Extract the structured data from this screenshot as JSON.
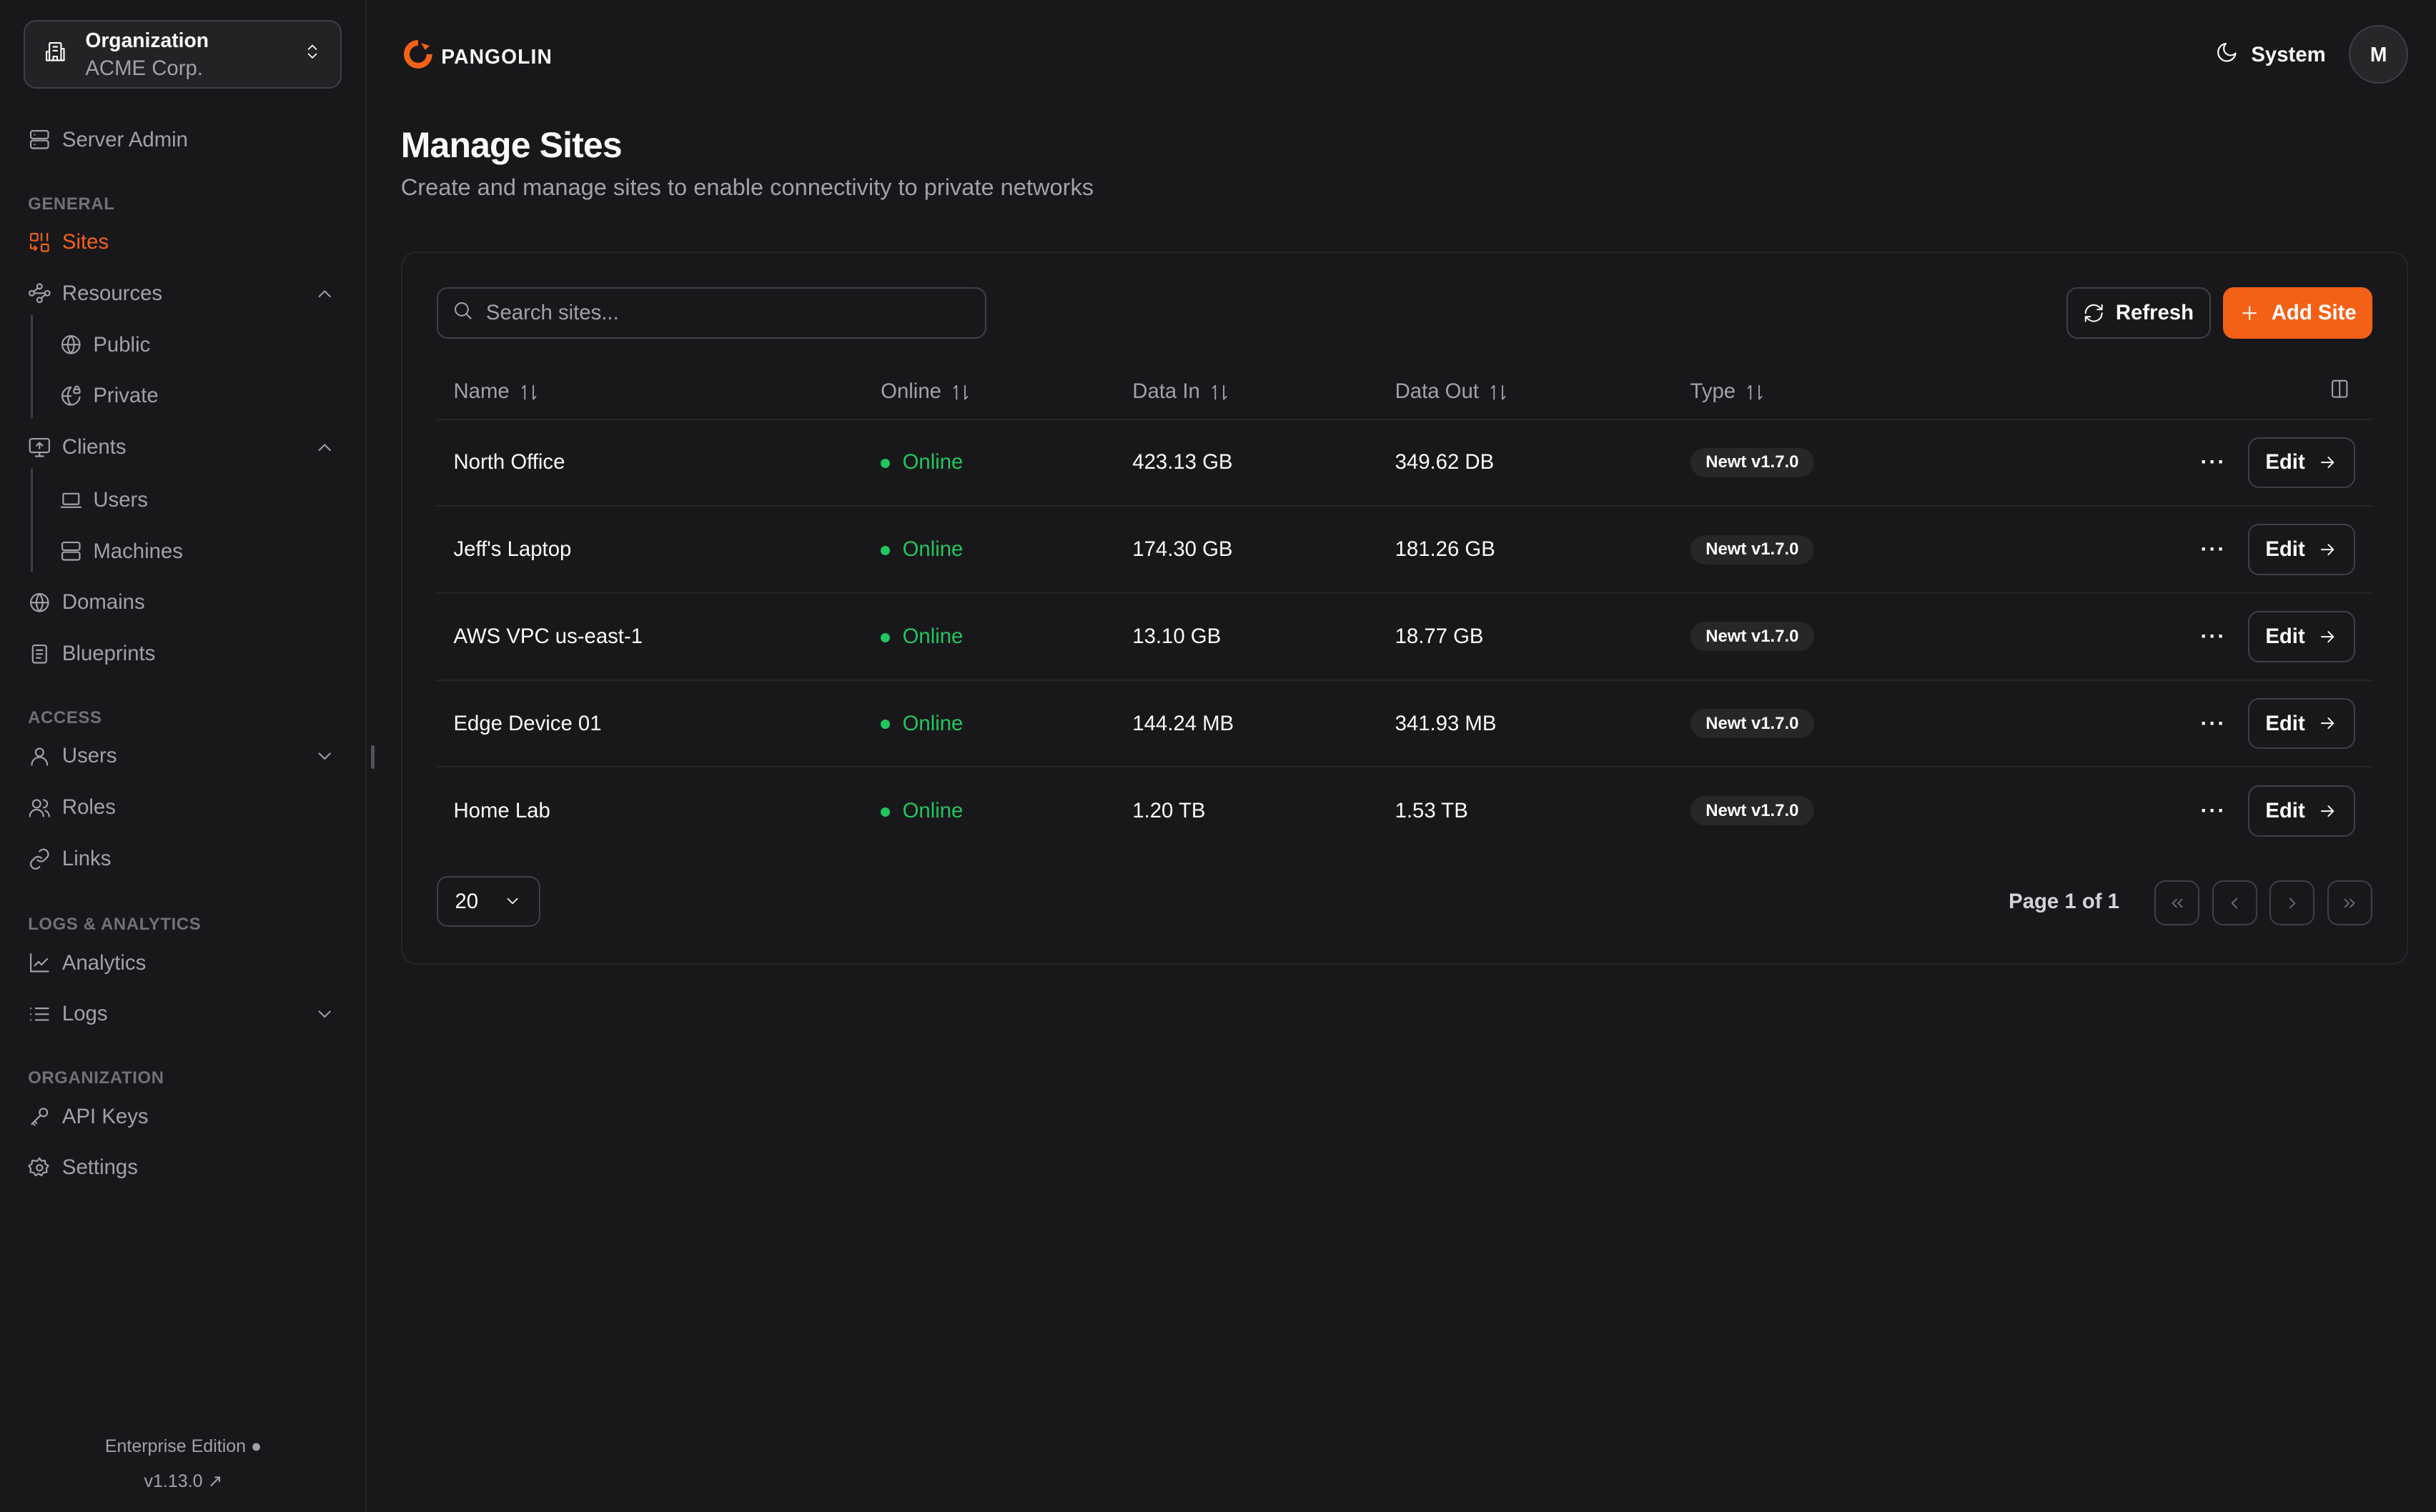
{
  "org": {
    "label": "Organization",
    "name": "ACME Corp."
  },
  "sidebar": {
    "server_admin": "Server Admin",
    "sections": {
      "general": "GENERAL",
      "access": "ACCESS",
      "logs": "LOGS & ANALYTICS",
      "organization": "ORGANIZATION"
    },
    "items": {
      "sites": "Sites",
      "resources": "Resources",
      "public": "Public",
      "private": "Private",
      "clients": "Clients",
      "users": "Users",
      "machines": "Machines",
      "domains": "Domains",
      "blueprints": "Blueprints",
      "access_users": "Users",
      "roles": "Roles",
      "links": "Links",
      "analytics": "Analytics",
      "logs": "Logs",
      "api_keys": "API Keys",
      "settings": "Settings"
    },
    "edition": "Enterprise Edition",
    "version": "v1.13.0"
  },
  "header": {
    "brand": "PANGOLIN",
    "theme": "System",
    "avatar": "M"
  },
  "page": {
    "title": "Manage Sites",
    "subtitle": "Create and manage sites to enable connectivity to private networks"
  },
  "toolbar": {
    "search_placeholder": "Search sites...",
    "refresh": "Refresh",
    "add": "Add Site"
  },
  "table": {
    "columns": [
      "Name",
      "Online",
      "Data In",
      "Data Out",
      "Type"
    ],
    "rows": [
      {
        "name": "North Office",
        "status": "Online",
        "data_in": "423.13 GB",
        "data_out": "349.62 DB",
        "type": "Newt v1.7.0"
      },
      {
        "name": "Jeff's Laptop",
        "status": "Online",
        "data_in": "174.30 GB",
        "data_out": "181.26 GB",
        "type": "Newt v1.7.0"
      },
      {
        "name": "AWS VPC us-east-1",
        "status": "Online",
        "data_in": "13.10 GB",
        "data_out": "18.77 GB",
        "type": "Newt v1.7.0"
      },
      {
        "name": "Edge Device 01",
        "status": "Online",
        "data_in": "144.24 MB",
        "data_out": "341.93 MB",
        "type": "Newt v1.7.0"
      },
      {
        "name": "Home Lab",
        "status": "Online",
        "data_in": "1.20 TB",
        "data_out": "1.53 TB",
        "type": "Newt v1.7.0"
      }
    ],
    "edit_label": "Edit"
  },
  "pagination": {
    "page_size": "20",
    "info": "Page 1 of 1"
  },
  "colors": {
    "accent": "#f36117",
    "online": "#22c55e",
    "background": "#18181b",
    "border": "#27272a"
  }
}
